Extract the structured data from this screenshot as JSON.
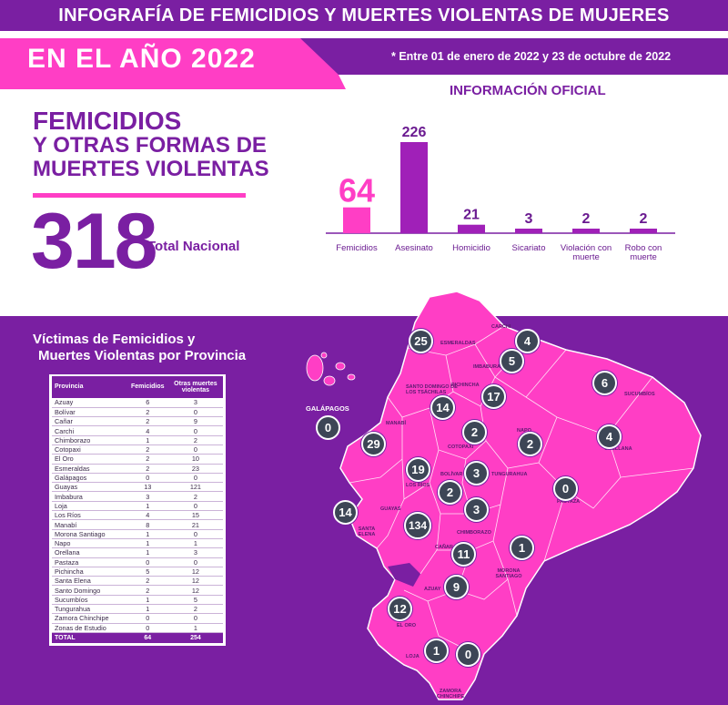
{
  "header": {
    "title": "INFOGRAFÍA DE FEMICIDIOS Y MUERTES VIOLENTAS DE MUJERES",
    "year_label": "EN EL AÑO 2022",
    "date_note": "* Entre 01 de enero de 2022 y 23 de octubre de 2022"
  },
  "summary": {
    "title_line1": "FEMICIDIOS",
    "title_line2": "Y OTRAS FORMAS DE",
    "title_line3": "MUERTES VIOLENTAS",
    "total_value": "318",
    "total_label": "Total Nacional"
  },
  "colors": {
    "purple": "#7a1fa2",
    "pink": "#ff3ec5",
    "magenta": "#a020b8",
    "bubble": "#3d4656"
  },
  "chart_data": [
    {
      "type": "bar",
      "title": "INFORMACIÓN OFICIAL",
      "categories": [
        "Femicidios",
        "Asesinato",
        "Homicidio",
        "Sicariato",
        "Violación con muerte",
        "Robo con muerte"
      ],
      "values": [
        64,
        226,
        21,
        3,
        2,
        2
      ],
      "value_labels": [
        "64",
        "226",
        "21",
        "3",
        "2",
        "2"
      ],
      "bar_colors": [
        "#ff3ec5",
        "#a020b8",
        "#a020b8",
        "#a020b8",
        "#a020b8",
        "#a020b8"
      ],
      "ylim": [
        0,
        226
      ]
    },
    {
      "type": "table",
      "title_line1": "Víctimas de Femicidios y",
      "title_line2": "Muertes Violentas por Provincia",
      "columns": [
        "Provincia",
        "Femicidios",
        "Otras muertes violentas"
      ],
      "rows": [
        [
          "Azuay",
          "6",
          "3"
        ],
        [
          "Bolívar",
          "2",
          "0"
        ],
        [
          "Cañar",
          "2",
          "9"
        ],
        [
          "Carchi",
          "4",
          "0"
        ],
        [
          "Chimborazo",
          "1",
          "2"
        ],
        [
          "Cotopaxi",
          "2",
          "0"
        ],
        [
          "El Oro",
          "2",
          "10"
        ],
        [
          "Esmeraldas",
          "2",
          "23"
        ],
        [
          "Galápagos",
          "0",
          "0"
        ],
        [
          "Guayas",
          "13",
          "121"
        ],
        [
          "Imbabura",
          "3",
          "2"
        ],
        [
          "Loja",
          "1",
          "0"
        ],
        [
          "Los Ríos",
          "4",
          "15"
        ],
        [
          "Manabí",
          "8",
          "21"
        ],
        [
          "Morona Santiago",
          "1",
          "0"
        ],
        [
          "Napo",
          "1",
          "1"
        ],
        [
          "Orellana",
          "1",
          "3"
        ],
        [
          "Pastaza",
          "0",
          "0"
        ],
        [
          "Pichincha",
          "5",
          "12"
        ],
        [
          "Santa Elena",
          "2",
          "12"
        ],
        [
          "Santo Domingo",
          "2",
          "12"
        ],
        [
          "Sucumbíos",
          "1",
          "5"
        ],
        [
          "Tungurahua",
          "1",
          "2"
        ],
        [
          "Zamora Chinchipe",
          "0",
          "0"
        ],
        [
          "Zonas de Estudio",
          "0",
          "1"
        ]
      ],
      "total_row": [
        "TOTAL",
        "64",
        "254"
      ]
    },
    {
      "type": "map",
      "markers": [
        {
          "name": "ESMERALDAS",
          "value": "25"
        },
        {
          "name": "CARCHI",
          "value": "4"
        },
        {
          "name": "IMBABURA",
          "value": "5"
        },
        {
          "name": "SUCUMBÍOS",
          "value": "6"
        },
        {
          "name": "SANTO DOMINGO DE LOS TSÁCHILAS",
          "value": "14"
        },
        {
          "name": "PICHINCHA",
          "value": "17"
        },
        {
          "name": "GALÁPAGOS",
          "value": "0"
        },
        {
          "name": "MANABÍ",
          "value": "29"
        },
        {
          "name": "COTOPAXI",
          "value": "2"
        },
        {
          "name": "NAPO",
          "value": "2"
        },
        {
          "name": "ORELLANA",
          "value": "4"
        },
        {
          "name": "LOS RÍOS",
          "value": "19"
        },
        {
          "name": "TUNGURAHUA",
          "value": "3"
        },
        {
          "name": "BOLÍVAR",
          "value": "2"
        },
        {
          "name": "PASTAZA",
          "value": "0"
        },
        {
          "name": "SANTA ELENA",
          "value": "14"
        },
        {
          "name": "CHIMBORAZO",
          "value": "3"
        },
        {
          "name": "GUAYAS",
          "value": "134"
        },
        {
          "name": "CAÑAR",
          "value": "11"
        },
        {
          "name": "MORONA SANTIAGO",
          "value": "1"
        },
        {
          "name": "AZUAY",
          "value": "9"
        },
        {
          "name": "EL ORO",
          "value": "12"
        },
        {
          "name": "LOJA",
          "value": "1"
        },
        {
          "name": "ZAMORA CHINCHIPE",
          "value": "0"
        }
      ]
    }
  ]
}
